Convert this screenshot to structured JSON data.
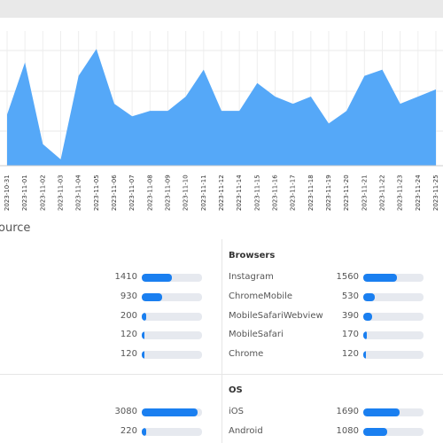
{
  "chart_data": {
    "type": "area",
    "color": "#55a8f8",
    "categories": [
      "2023-10-31",
      "2023-11-01",
      "2023-11-02",
      "2023-11-03",
      "2023-11-04",
      "2023-11-05",
      "2023-11-06",
      "2023-11-07",
      "2023-11-08",
      "2023-11-09",
      "2023-11-10",
      "2023-11-11",
      "2023-11-12",
      "2023-11-14",
      "2023-11-15",
      "2023-11-16",
      "2023-11-17",
      "2023-11-18",
      "2023-11-19",
      "2023-11-20",
      "2023-11-21",
      "2023-11-22",
      "2023-11-23",
      "2023-11-24",
      "2023-11-25"
    ],
    "values": [
      57,
      115,
      24,
      7,
      100,
      130,
      69,
      55,
      61,
      61,
      77,
      107,
      61,
      61,
      92,
      77,
      69,
      77,
      47,
      61,
      100,
      107,
      69,
      77,
      85
    ],
    "ylim": [
      0,
      150
    ]
  },
  "section_title": "ource",
  "panels": [
    {
      "title": null,
      "rows": [
        {
          "label": null,
          "value": 1410
        },
        {
          "label": null,
          "value": 930
        },
        {
          "label": null,
          "value": 200
        },
        {
          "label": null,
          "value": 120
        },
        {
          "label": null,
          "value": 120
        }
      ]
    },
    {
      "title": "Browsers",
      "rows": [
        {
          "label": "Instagram",
          "value": 1560
        },
        {
          "label": "ChromeMobile",
          "value": 530
        },
        {
          "label": "MobileSafariWebview",
          "value": 390
        },
        {
          "label": "MobileSafari",
          "value": 170
        },
        {
          "label": "Chrome",
          "value": 120
        }
      ]
    },
    {
      "title": null,
      "rows": [
        {
          "label": null,
          "value": 3080
        },
        {
          "label": null,
          "value": 220
        }
      ]
    },
    {
      "title": "OS",
      "rows": [
        {
          "label": "iOS",
          "value": 1690
        },
        {
          "label": "Android",
          "value": 1080
        }
      ]
    }
  ]
}
